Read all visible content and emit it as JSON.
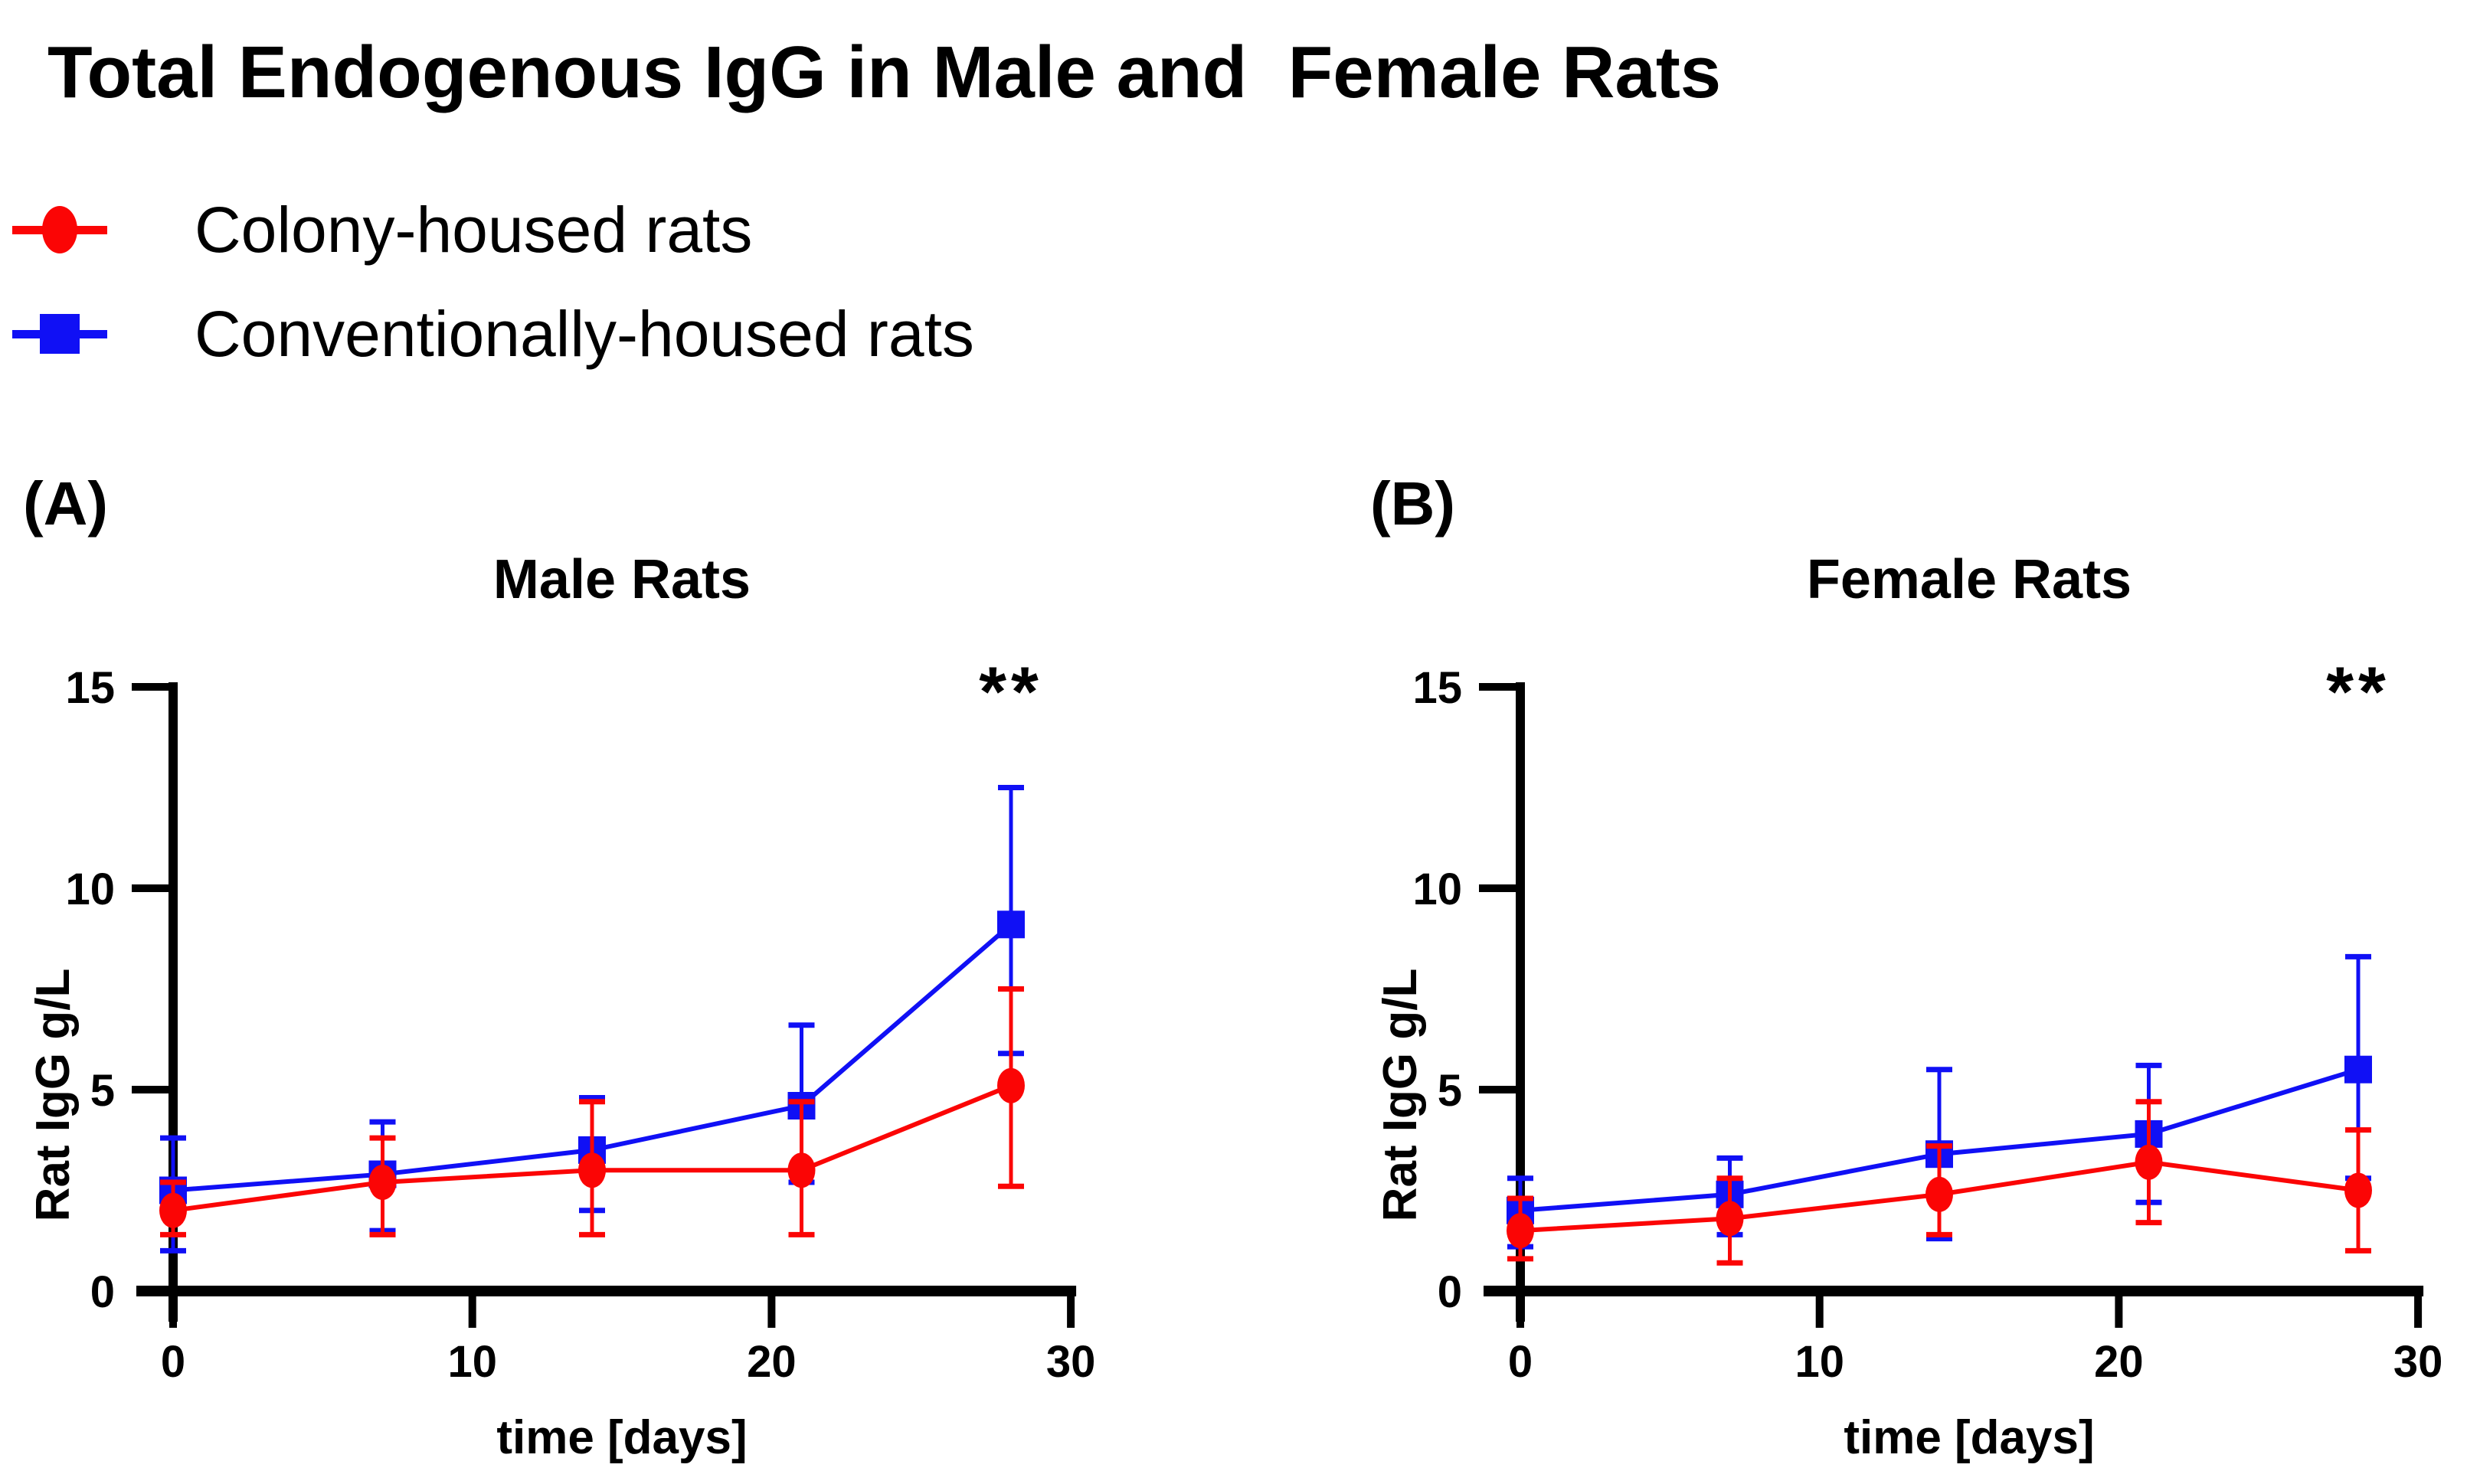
{
  "header": {
    "title": "Total Endogenous IgG in Male and  Female Rats"
  },
  "legend": {
    "position": "top-left",
    "items": [
      {
        "label": "Colony-housed rats",
        "marker": "circle",
        "color": "#FB0505"
      },
      {
        "label": "Conventionally-housed rats",
        "marker": "square",
        "color": "#1010F5"
      }
    ]
  },
  "chart_data": [
    {
      "type": "line",
      "panel_letter": "(A)",
      "title": "Male Rats",
      "significance": "**",
      "significance_at_day": 28,
      "xlabel": "time [days]",
      "ylabel": "Rat IgG g/L",
      "xlim": [
        0,
        30
      ],
      "ylim": [
        0,
        15
      ],
      "xticks": [
        0,
        10,
        20,
        30
      ],
      "yticks": [
        0,
        5,
        10,
        15
      ],
      "grid": false,
      "x": [
        0,
        7,
        14,
        21,
        28
      ],
      "series": [
        {
          "name": "Conventionally-housed rats",
          "marker": "square",
          "color": "#1010F5",
          "values": [
            2.5,
            2.9,
            3.5,
            4.6,
            9.1
          ],
          "err_low": [
            1.0,
            1.5,
            2.0,
            2.7,
            5.9
          ],
          "err_high": [
            3.8,
            4.2,
            4.8,
            6.6,
            12.5
          ]
        },
        {
          "name": "Colony-housed rats",
          "marker": "circle",
          "color": "#FB0505",
          "values": [
            2.0,
            2.7,
            3.0,
            3.0,
            5.1
          ],
          "err_low": [
            1.4,
            1.4,
            1.4,
            1.4,
            2.6
          ],
          "err_high": [
            2.7,
            3.8,
            4.7,
            4.7,
            7.5
          ]
        }
      ]
    },
    {
      "type": "line",
      "panel_letter": "(B)",
      "title": "Female Rats",
      "significance": "**",
      "significance_at_day": 28,
      "xlabel": "time [days]",
      "ylabel": "Rat IgG g/L",
      "xlim": [
        0,
        30
      ],
      "ylim": [
        0,
        15
      ],
      "xticks": [
        0,
        10,
        20,
        30
      ],
      "yticks": [
        0,
        5,
        10,
        15
      ],
      "grid": false,
      "x": [
        0,
        7,
        14,
        21,
        28
      ],
      "series": [
        {
          "name": "Conventionally-housed rats",
          "marker": "square",
          "color": "#1010F5",
          "values": [
            2.0,
            2.4,
            3.4,
            3.9,
            5.5
          ],
          "err_low": [
            1.1,
            1.4,
            1.3,
            2.2,
            2.8
          ],
          "err_high": [
            2.8,
            3.3,
            5.5,
            5.6,
            8.3
          ]
        },
        {
          "name": "Colony-housed rats",
          "marker": "circle",
          "color": "#FB0505",
          "values": [
            1.5,
            1.8,
            2.4,
            3.2,
            2.5
          ],
          "err_low": [
            0.8,
            0.7,
            1.4,
            1.7,
            1.0
          ],
          "err_high": [
            2.3,
            2.8,
            3.6,
            4.7,
            4.0
          ]
        }
      ]
    }
  ]
}
